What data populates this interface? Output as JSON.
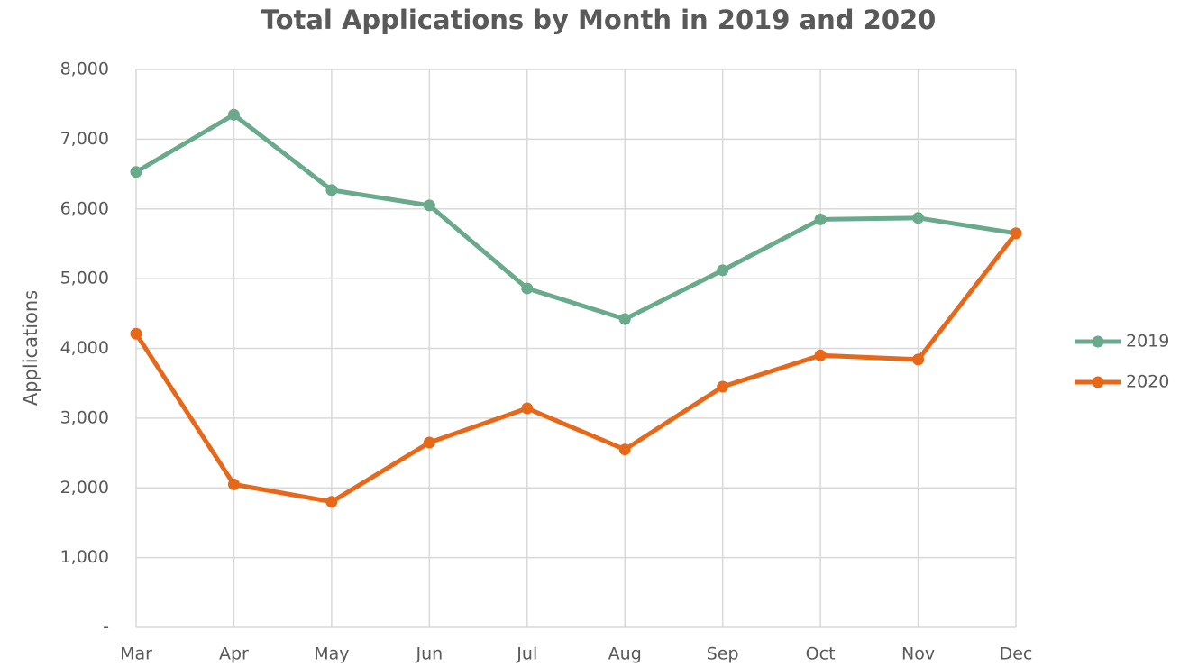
{
  "chart_data": {
    "type": "line",
    "title": "Total Applications by Month in 2019 and 2020",
    "y_label": "Applications",
    "categories": [
      "Mar",
      "Apr",
      "May",
      "Jun",
      "Jul",
      "Aug",
      "Sep",
      "Oct",
      "Nov",
      "Dec"
    ],
    "series": [
      {
        "name": "2019",
        "color": "#6aaa8c",
        "values": [
          6530,
          7350,
          6270,
          6050,
          4860,
          4420,
          5120,
          5850,
          5870,
          5650
        ]
      },
      {
        "name": "2020",
        "color": "#e8681a",
        "values": [
          4210,
          2050,
          1800,
          2650,
          3140,
          2550,
          3450,
          3900,
          3840,
          5650
        ]
      }
    ],
    "ylim": [
      0,
      8000
    ],
    "yticks": [
      {
        "value": 0,
        "label": "-"
      },
      {
        "value": 1000,
        "label": "1,000"
      },
      {
        "value": 2000,
        "label": "2,000"
      },
      {
        "value": 3000,
        "label": "3,000"
      },
      {
        "value": 4000,
        "label": "4,000"
      },
      {
        "value": 5000,
        "label": "5,000"
      },
      {
        "value": 6000,
        "label": "6,000"
      },
      {
        "value": 7000,
        "label": "7,000"
      },
      {
        "value": 8000,
        "label": "8,000"
      }
    ],
    "grid": true,
    "legend": "right"
  }
}
